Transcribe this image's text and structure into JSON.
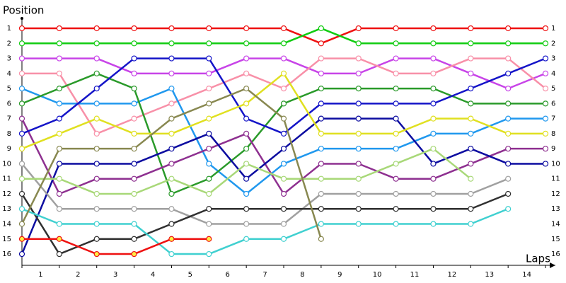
{
  "chart_data": {
    "type": "line",
    "y_label": "Position",
    "x_label": "Laps",
    "x": [
      0,
      1,
      2,
      3,
      4,
      5,
      6,
      7,
      8,
      9,
      10,
      11,
      12,
      13,
      14
    ],
    "xlim": [
      0,
      14.2
    ],
    "xticks": [
      {
        "value": 0.5,
        "label": "1"
      },
      {
        "value": 1.5,
        "label": "2"
      },
      {
        "value": 2.5,
        "label": "3"
      },
      {
        "value": 3.5,
        "label": "4"
      },
      {
        "value": 4.5,
        "label": "5"
      },
      {
        "value": 5.5,
        "label": "6"
      },
      {
        "value": 6.5,
        "label": "7"
      },
      {
        "value": 7.5,
        "label": "8"
      },
      {
        "value": 8.5,
        "label": "9"
      },
      {
        "value": 9.5,
        "label": "10"
      },
      {
        "value": 10.5,
        "label": "11"
      },
      {
        "value": 11.5,
        "label": "12"
      },
      {
        "value": 12.5,
        "label": "13"
      },
      {
        "value": 13.5,
        "label": "14"
      }
    ],
    "ylim": [
      16.75,
      0.5
    ],
    "yticks": [
      1,
      2,
      3,
      4,
      5,
      6,
      7,
      8,
      9,
      10,
      11,
      12,
      13,
      14,
      15,
      16
    ],
    "marker_fill": "#ffffff",
    "series": [
      {
        "color": "#ee1111",
        "values": [
          1,
          1,
          1,
          1,
          1,
          1,
          1,
          1,
          2,
          1,
          1,
          1,
          1,
          1,
          1
        ]
      },
      {
        "color": "#11cc11",
        "values": [
          2,
          2,
          2,
          2,
          2,
          2,
          2,
          2,
          1,
          2,
          2,
          2,
          2,
          2,
          2
        ]
      },
      {
        "color": "#c844e8",
        "values": [
          3,
          3,
          3,
          4,
          4,
          4,
          3,
          3,
          4,
          4,
          3,
          3,
          4,
          5,
          4
        ]
      },
      {
        "color": "#f890a8",
        "values": [
          4,
          4,
          8,
          7,
          6,
          5,
          4,
          5,
          3,
          3,
          4,
          4,
          3,
          3,
          5
        ]
      },
      {
        "color": "#2098ee",
        "values": [
          5,
          6,
          6,
          6,
          5,
          10,
          12,
          10,
          9,
          9,
          9,
          8,
          8,
          7,
          7
        ]
      },
      {
        "color": "#2a9a2a",
        "values": [
          6,
          5,
          4,
          5,
          12,
          11,
          9,
          6,
          5,
          5,
          5,
          5,
          6,
          6,
          6
        ]
      },
      {
        "color": "#8e3090",
        "values": [
          7,
          12,
          11,
          11,
          10,
          9,
          8,
          12,
          10,
          10,
          11,
          11,
          10,
          9,
          9
        ]
      },
      {
        "color": "#1414c8",
        "values": [
          8,
          7,
          5,
          3,
          3,
          3,
          7,
          8,
          6,
          6,
          6,
          6,
          5,
          4,
          3
        ]
      },
      {
        "color": "#0c0ca0",
        "values": [
          16,
          10,
          10,
          10,
          9,
          8,
          11,
          9,
          7,
          7,
          7,
          10,
          9,
          10,
          10
        ]
      },
      {
        "color": "#e0e020",
        "values": [
          9,
          8,
          7,
          8,
          8,
          7,
          6,
          4,
          8,
          8,
          8,
          7,
          7,
          8,
          8
        ]
      },
      {
        "color": "#a0a0a0",
        "values": [
          10,
          13,
          13,
          13,
          13,
          14,
          14,
          14,
          12,
          12,
          12,
          12,
          12,
          11,
          null
        ]
      },
      {
        "color": "#a8d878",
        "values": [
          11,
          11,
          12,
          12,
          11,
          12,
          10,
          11,
          11,
          11,
          10,
          9,
          11,
          null,
          null
        ]
      },
      {
        "color": "#303030",
        "values": [
          12,
          16,
          15,
          15,
          14,
          13,
          13,
          13,
          13,
          13,
          13,
          13,
          13,
          12,
          null
        ]
      },
      {
        "color": "#40d0d0",
        "values": [
          13,
          14,
          14,
          14,
          16,
          16,
          15,
          15,
          14,
          14,
          14,
          14,
          14,
          13,
          null
        ]
      },
      {
        "color": "#888850",
        "values": [
          14,
          9,
          9,
          9,
          7,
          6,
          5,
          7,
          15,
          null,
          null,
          null,
          null,
          null,
          null
        ]
      },
      {
        "color": "#ee1111",
        "marker_fill": "#ffee44",
        "values": [
          15,
          15,
          16,
          16,
          15,
          15,
          null,
          null,
          null,
          null,
          null,
          null,
          null,
          null,
          null
        ]
      }
    ]
  }
}
